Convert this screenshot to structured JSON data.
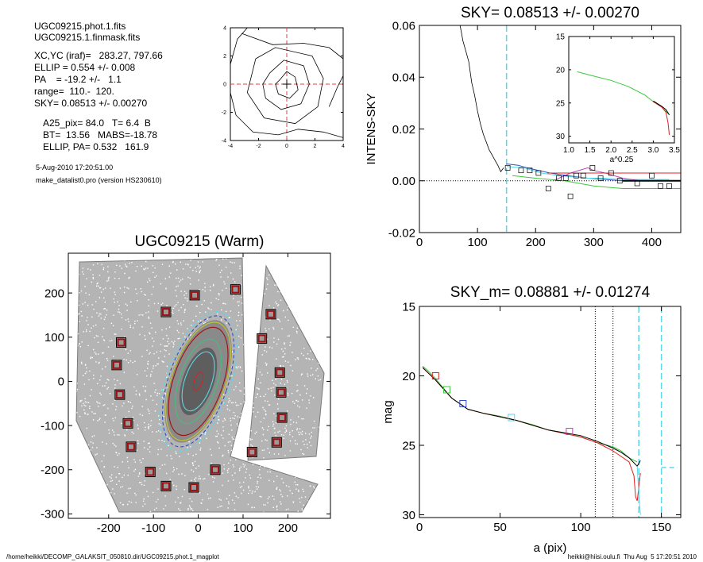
{
  "info": {
    "lines": [
      "UGC09215.phot.1.fits",
      "UGC09215.1.finmask.fits",
      "XC,YC (iraf)=   283.27, 797.66",
      "ELLIP = 0.554 +/- 0.008",
      "PA    = -19.2 +/-   1.1",
      "range=  110.-  120.",
      "SKY= 0.08513 +/- 0.00270",
      "A25_pix= 84.0   T= 6.4  B",
      "BT=  13.56   MABS=-18.78",
      "ELLIP, PA= 0.532   161.9",
      "5-Aug-2010 17:20:51.00",
      "make_datalist0.pro (version HS230610)"
    ]
  },
  "footer": {
    "left": "/home/heikki/DECOMP_GALAKSIT_050810.dir/UGC09215.phot.1_magplot",
    "right": "heikki@hiisi.oulu.fi  Thu Aug  5 17:20:51 2010"
  },
  "colors": {
    "dash_red": "#e04040",
    "cyan": "#5ad8e8",
    "red": "#e02020",
    "green": "#3cc83c",
    "blue": "#3050c0",
    "magenta": "#c040c0",
    "dark_red": "#a01010"
  },
  "chart_data": [
    {
      "type": "line",
      "title": "",
      "xlabel": "",
      "ylabel": "",
      "xlim": [
        -4,
        4
      ],
      "ylim": [
        -4,
        4
      ],
      "xticks": [
        "-4",
        "-2",
        "0",
        "2",
        "4"
      ],
      "yticks": [
        "-4",
        "-2",
        "0",
        "2",
        "4"
      ],
      "series": [
        {
          "values": [
            [
              -0.5,
              0.3
            ],
            [
              0.0,
              0.9
            ],
            [
              0.6,
              0.5
            ],
            [
              0.8,
              -0.4
            ],
            [
              0.2,
              -1.0
            ],
            [
              -0.6,
              -0.7
            ],
            [
              -0.8,
              0.0
            ],
            [
              -0.5,
              0.3
            ]
          ]
        },
        {
          "values": [
            [
              -1.2,
              0.8
            ],
            [
              -0.2,
              1.7
            ],
            [
              1.2,
              1.3
            ],
            [
              1.6,
              0.0
            ],
            [
              1.0,
              -1.4
            ],
            [
              -0.4,
              -1.8
            ],
            [
              -1.5,
              -1.0
            ],
            [
              -1.7,
              0.0
            ],
            [
              -1.2,
              0.8
            ]
          ]
        },
        {
          "values": [
            [
              -2.2,
              1.8
            ],
            [
              -0.8,
              2.6
            ],
            [
              1.8,
              2.0
            ],
            [
              2.6,
              0.4
            ],
            [
              2.2,
              -1.6
            ],
            [
              0.6,
              -2.8
            ],
            [
              -1.6,
              -2.4
            ],
            [
              -2.8,
              -0.6
            ],
            [
              -2.2,
              1.8
            ]
          ]
        },
        {
          "values": [
            [
              -3.2,
              3.6
            ],
            [
              -1.0,
              2.8
            ],
            [
              1.2,
              2.9
            ],
            [
              3.0,
              2.6
            ],
            [
              4.0,
              1.8
            ]
          ]
        },
        {
          "values": [
            [
              -4.0,
              -0.6
            ],
            [
              -3.6,
              -2.2
            ],
            [
              -2.4,
              -3.4
            ],
            [
              -0.6,
              -3.6
            ],
            [
              0.8,
              -3.2
            ],
            [
              2.6,
              -3.4
            ],
            [
              4.0,
              -3.8
            ]
          ]
        },
        {
          "values": [
            [
              -4.0,
              1.4
            ],
            [
              -3.5,
              3.2
            ],
            [
              -2.8,
              4.0
            ]
          ]
        },
        {
          "values": [
            [
              3.0,
              -1.6
            ],
            [
              3.6,
              -0.2
            ],
            [
              4.0,
              0.6
            ]
          ]
        }
      ]
    },
    {
      "type": "scatter",
      "title": "UGC09215 (Warm)",
      "xlabel": "",
      "ylabel": "",
      "xlim": [
        -290,
        295
      ],
      "ylim": [
        -310,
        290
      ],
      "xticks": [
        "-200",
        "-100",
        "0",
        "100",
        "200"
      ],
      "yticks": [
        "-300",
        "-200",
        "-100",
        "0",
        "100",
        "200"
      ],
      "markers": [
        [
          -8,
          195
        ],
        [
          83,
          208
        ],
        [
          -72,
          157
        ],
        [
          162,
          152
        ],
        [
          -172,
          88
        ],
        [
          142,
          97
        ],
        [
          -182,
          37
        ],
        [
          182,
          20
        ],
        [
          -175,
          -30
        ],
        [
          185,
          -25
        ],
        [
          -157,
          -95
        ],
        [
          187,
          -82
        ],
        [
          -150,
          -148
        ],
        [
          175,
          -138
        ],
        [
          -107,
          -205
        ],
        [
          120,
          -160
        ],
        [
          -72,
          -237
        ],
        [
          38,
          -200
        ],
        [
          -10,
          -240
        ]
      ],
      "ellipses": [
        {
          "a": 165,
          "b": 72,
          "pa": -19,
          "color": "#5ad8e8"
        },
        {
          "a": 155,
          "b": 66,
          "pa": -19,
          "color": "#3050c0"
        },
        {
          "a": 140,
          "b": 60,
          "pa": -19,
          "color": "#c8c830"
        },
        {
          "a": 128,
          "b": 55,
          "pa": -19,
          "color": "#a01010"
        },
        {
          "a": 100,
          "b": 42,
          "pa": -19,
          "color": "#40c080"
        },
        {
          "a": 70,
          "b": 30,
          "pa": -19,
          "color": "#5ad8e8"
        },
        {
          "a": 22,
          "b": 9,
          "pa": -19,
          "color": "#e02020"
        }
      ]
    },
    {
      "type": "line",
      "title": "SKY= 0.08513 +/- 0.00270",
      "xlabel": "",
      "ylabel": "INTENS-SKY",
      "xlim": [
        0,
        450
      ],
      "ylim": [
        -0.02,
        0.06
      ],
      "xticks": [
        "0",
        "100",
        "200",
        "300",
        "400"
      ],
      "yticks": [
        "-0.02",
        "0.00",
        "0.02",
        "0.04",
        "0.06"
      ],
      "vline": 150,
      "profile": [
        [
          60,
          0.07
        ],
        [
          65,
          0.064
        ],
        [
          70,
          0.06
        ],
        [
          75,
          0.054
        ],
        [
          80,
          0.05
        ],
        [
          85,
          0.046
        ],
        [
          90,
          0.038
        ],
        [
          95,
          0.033
        ],
        [
          100,
          0.027
        ],
        [
          105,
          0.022
        ],
        [
          110,
          0.018
        ],
        [
          115,
          0.015
        ],
        [
          120,
          0.012
        ],
        [
          125,
          0.01
        ],
        [
          130,
          0.008
        ],
        [
          135,
          0.006
        ],
        [
          140,
          0.0035
        ],
        [
          145,
          0.005
        ]
      ],
      "series": [
        {
          "color": "#3050c0",
          "values": [
            [
              150,
              0.0065
            ],
            [
              170,
              0.006
            ],
            [
              185,
              0.005
            ],
            [
              205,
              0.004
            ],
            [
              225,
              0.003
            ],
            [
              255,
              0.002
            ],
            [
              290,
              0.001
            ],
            [
              320,
              0.0005
            ],
            [
              350,
              0.0
            ],
            [
              430,
              0.0
            ]
          ]
        },
        {
          "color": "#5ad8e8",
          "values": [
            [
              150,
              0.0055
            ],
            [
              180,
              0.005
            ],
            [
              210,
              0.003
            ],
            [
              240,
              0.002
            ],
            [
              290,
              0.001
            ],
            [
              320,
              0.001
            ],
            [
              350,
              0.0005
            ],
            [
              430,
              0.0005
            ]
          ]
        },
        {
          "color": "#3cc83c",
          "values": [
            [
              160,
              0.002
            ],
            [
              200,
              0.001
            ],
            [
              250,
              0.0
            ],
            [
              300,
              -0.002
            ],
            [
              350,
              -0.003
            ],
            [
              450,
              -0.003
            ]
          ]
        },
        {
          "color": "#c040c0",
          "values": [
            [
              230,
              0.0
            ],
            [
              260,
              0.003
            ],
            [
              290,
              0.005
            ],
            [
              300,
              0.004
            ],
            [
              320,
              0.003
            ],
            [
              350,
              0.001
            ],
            [
              380,
              0.0
            ]
          ]
        },
        {
          "color": "#e02020",
          "values": [
            [
              220,
              0.003
            ],
            [
              450,
              0.003
            ]
          ]
        },
        {
          "color": "#000000",
          "values": [
            [
              350,
              0.0
            ],
            [
              450,
              0.0
            ]
          ]
        }
      ],
      "squares": [
        [
          152,
          0.005
        ],
        [
          175,
          0.004
        ],
        [
          190,
          0.004
        ],
        [
          205,
          0.003
        ],
        [
          222,
          -0.003
        ],
        [
          240,
          0.001
        ],
        [
          252,
          0.001
        ],
        [
          260,
          -0.006
        ],
        [
          270,
          0.002
        ],
        [
          282,
          0.002
        ],
        [
          298,
          0.005
        ],
        [
          312,
          0.001
        ],
        [
          330,
          0.003
        ],
        [
          345,
          0.0
        ],
        [
          375,
          -0.001
        ],
        [
          400,
          0.002
        ],
        [
          415,
          -0.002
        ],
        [
          430,
          -0.002
        ]
      ],
      "inset": {
        "xlabel": "a^0.25",
        "xlim": [
          1.0,
          3.5
        ],
        "ylim": [
          15,
          31
        ],
        "xticks": [
          "1.0",
          "1.5",
          "2.0",
          "2.5",
          "3.0",
          "3.5"
        ],
        "yticks": [
          "15",
          "20",
          "25",
          "30"
        ],
        "series": [
          {
            "color": "#3cc83c",
            "values": [
              [
                1.2,
                20.3
              ],
              [
                1.5,
                20.8
              ],
              [
                2.0,
                21.6
              ],
              [
                2.4,
                22.5
              ],
              [
                2.8,
                23.8
              ],
              [
                3.0,
                24.8
              ],
              [
                3.2,
                25.6
              ],
              [
                3.35,
                26.6
              ]
            ]
          },
          {
            "color": "#e02020",
            "values": [
              [
                3.0,
                24.8
              ],
              [
                3.2,
                25.6
              ],
              [
                3.3,
                26.4
              ],
              [
                3.35,
                28.0
              ],
              [
                3.38,
                29.8
              ]
            ]
          },
          {
            "color": "#000000",
            "values": [
              [
                3.0,
                24.7
              ],
              [
                3.2,
                25.5
              ],
              [
                3.3,
                26.0
              ],
              [
                3.38,
                26.8
              ]
            ]
          }
        ]
      }
    },
    {
      "type": "line",
      "title": "SKY_m=  0.08881 +/- 0.01274",
      "xlabel": "a (pix)",
      "ylabel": "mag",
      "xlim": [
        0,
        162
      ],
      "ylim": [
        15,
        30.2
      ],
      "xticks": [
        "0",
        "50",
        "100",
        "150"
      ],
      "yticks": [
        "15",
        "20",
        "25",
        "30"
      ],
      "vlines_dotted": [
        109,
        120
      ],
      "vlines_cyan": [
        136,
        150
      ],
      "series": [
        {
          "color": "#3cc83c",
          "values": [
            [
              2,
              19.3
            ],
            [
              5,
              19.6
            ],
            [
              10,
              20.2
            ],
            [
              15,
              20.9
            ],
            [
              20,
              21.6
            ],
            [
              25,
              22.0
            ],
            [
              30,
              22.4
            ],
            [
              40,
              22.7
            ],
            [
              50,
              22.9
            ],
            [
              60,
              23.2
            ],
            [
              70,
              23.5
            ],
            [
              80,
              23.9
            ],
            [
              90,
              24.1
            ],
            [
              100,
              24.4
            ],
            [
              110,
              24.8
            ],
            [
              120,
              25.1
            ],
            [
              125,
              25.4
            ],
            [
              130,
              25.9
            ],
            [
              135,
              26.2
            ]
          ]
        },
        {
          "color": "#e02020",
          "values": [
            [
              2,
              19.4
            ],
            [
              10,
              20.3
            ],
            [
              20,
              21.6
            ],
            [
              30,
              22.4
            ],
            [
              40,
              22.7
            ],
            [
              60,
              23.2
            ],
            [
              80,
              23.9
            ],
            [
              100,
              24.4
            ],
            [
              110,
              24.8
            ],
            [
              120,
              25.4
            ],
            [
              125,
              25.8
            ],
            [
              130,
              26.2
            ],
            [
              133,
              27.2
            ],
            [
              134,
              28.7
            ],
            [
              135,
              29.0
            ],
            [
              137,
              27.0
            ]
          ]
        },
        {
          "color": "#000000",
          "values": [
            [
              2,
              19.4
            ],
            [
              10,
              20.3
            ],
            [
              20,
              21.6
            ],
            [
              30,
              22.4
            ],
            [
              40,
              22.7
            ],
            [
              60,
              23.2
            ],
            [
              80,
              23.9
            ],
            [
              100,
              24.3
            ],
            [
              110,
              24.7
            ],
            [
              120,
              25.2
            ],
            [
              125,
              25.5
            ],
            [
              130,
              25.9
            ],
            [
              135,
              26.5
            ],
            [
              137,
              26.1
            ]
          ]
        },
        {
          "color": "#5ad8e8",
          "values": [
            [
              135,
              26.5
            ],
            [
              136,
              28.5
            ],
            [
              137,
              30.0
            ]
          ]
        },
        {
          "color": "#5ad8e8",
          "dashed": true,
          "values": [
            [
              150,
              26.6
            ],
            [
              160,
              26.6
            ]
          ]
        }
      ],
      "squares": [
        {
          "x": 10,
          "y": 20.0,
          "color": "#e02020"
        },
        {
          "x": 17,
          "y": 21.0,
          "color": "#3cc83c"
        },
        {
          "x": 27,
          "y": 22.0,
          "color": "#3050c0"
        },
        {
          "x": 57,
          "y": 23.0,
          "color": "#5ad8e8"
        },
        {
          "x": 93,
          "y": 24.0,
          "color": "#c040c0"
        }
      ]
    }
  ]
}
